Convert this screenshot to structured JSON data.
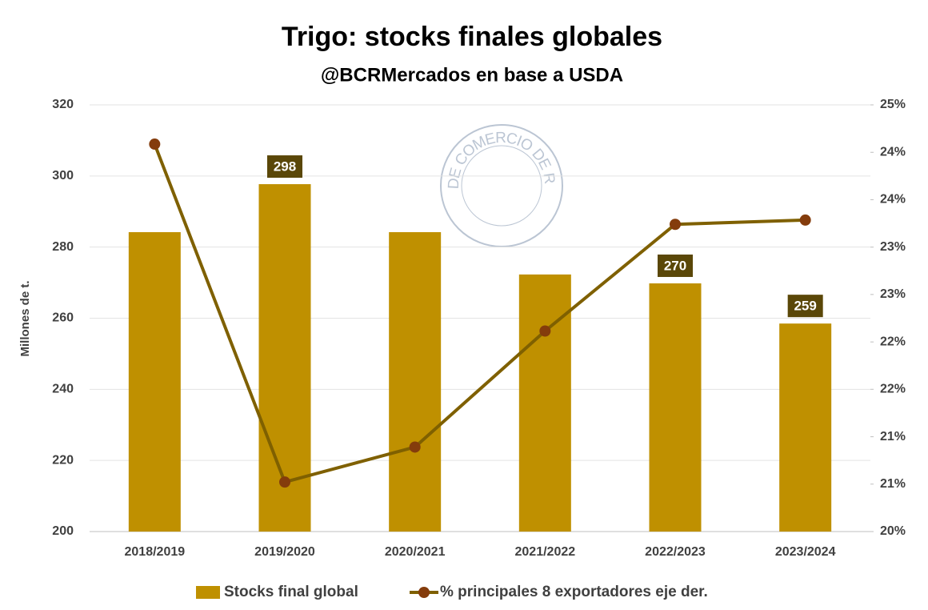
{
  "chart_data": {
    "type": "bar_line",
    "title": "Trigo: stocks finales globales",
    "subtitle": "@BCRMercados en base a USDA",
    "ylabel": "Millones de t.",
    "watermark": "BOLSA DE COMERCIO DE ROSARIO",
    "categories": [
      "2018/2019",
      "2019/2020",
      "2020/2021",
      "2021/2022",
      "2022/2023",
      "2023/2024"
    ],
    "series": [
      {
        "name": "Stocks final global",
        "type": "bar",
        "color": "#bf9000",
        "values": [
          284.2,
          297.7,
          284.2,
          272.3,
          269.8,
          258.5
        ],
        "value_labels": [
          null,
          "298",
          null,
          null,
          "270",
          "259"
        ]
      },
      {
        "name": "% principales 8 exportadores eje der.",
        "type": "line",
        "axis": "y2",
        "color": "#7f6000",
        "marker_color": "#843c0c",
        "values": [
          24.54,
          20.58,
          20.99,
          22.35,
          23.6,
          23.65
        ]
      }
    ],
    "ylim": [
      200,
      320
    ],
    "yticks": [
      200,
      220,
      240,
      260,
      280,
      300,
      320
    ],
    "y2lim": [
      20,
      25
    ],
    "y2ticks": [
      {
        "value": 20,
        "label": "20%"
      },
      {
        "value": 20.556,
        "label": "21%"
      },
      {
        "value": 21.111,
        "label": "21%"
      },
      {
        "value": 21.667,
        "label": "22%"
      },
      {
        "value": 22.222,
        "label": "22%"
      },
      {
        "value": 22.778,
        "label": "23%"
      },
      {
        "value": 23.333,
        "label": "23%"
      },
      {
        "value": 23.889,
        "label": "24%"
      },
      {
        "value": 24.444,
        "label": "24%"
      },
      {
        "value": 25,
        "label": "25%"
      }
    ],
    "grid": true,
    "legend": "bottom"
  }
}
